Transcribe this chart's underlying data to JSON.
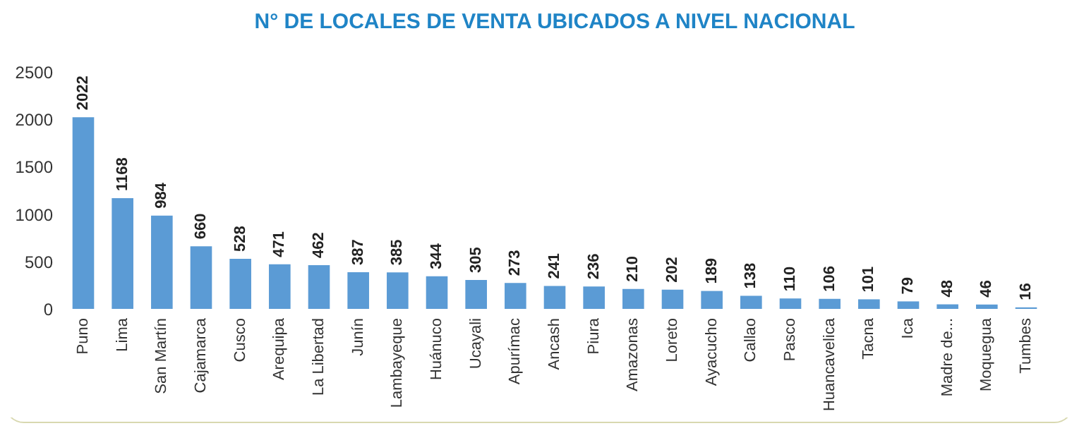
{
  "chart_data": {
    "type": "bar",
    "title": "N° DE LOCALES DE VENTA UBICADOS A NIVEL NACIONAL",
    "categories": [
      "Puno",
      "Lima",
      "San Martín",
      "Cajamarca",
      "Cusco",
      "Arequipa",
      "La Libertad",
      "Junín",
      "Lambayeque",
      "Huánuco",
      "Ucayali",
      "Apurímac",
      "Ancash",
      "Piura",
      "Amazonas",
      "Loreto",
      "Ayacucho",
      "Callao",
      "Pasco",
      "Huancavelica",
      "Tacna",
      "Ica",
      "Madre de...",
      "Moquegua",
      "Tumbes"
    ],
    "values": [
      2022,
      1168,
      984,
      660,
      528,
      471,
      462,
      387,
      385,
      344,
      305,
      273,
      241,
      236,
      210,
      202,
      189,
      138,
      110,
      106,
      101,
      79,
      48,
      46,
      16
    ],
    "color": "#5b9bd5",
    "ylim": [
      0,
      2500
    ],
    "yticks": [
      0,
      500,
      1000,
      1500,
      2000,
      2500
    ],
    "grid": false,
    "data_labels": true
  }
}
